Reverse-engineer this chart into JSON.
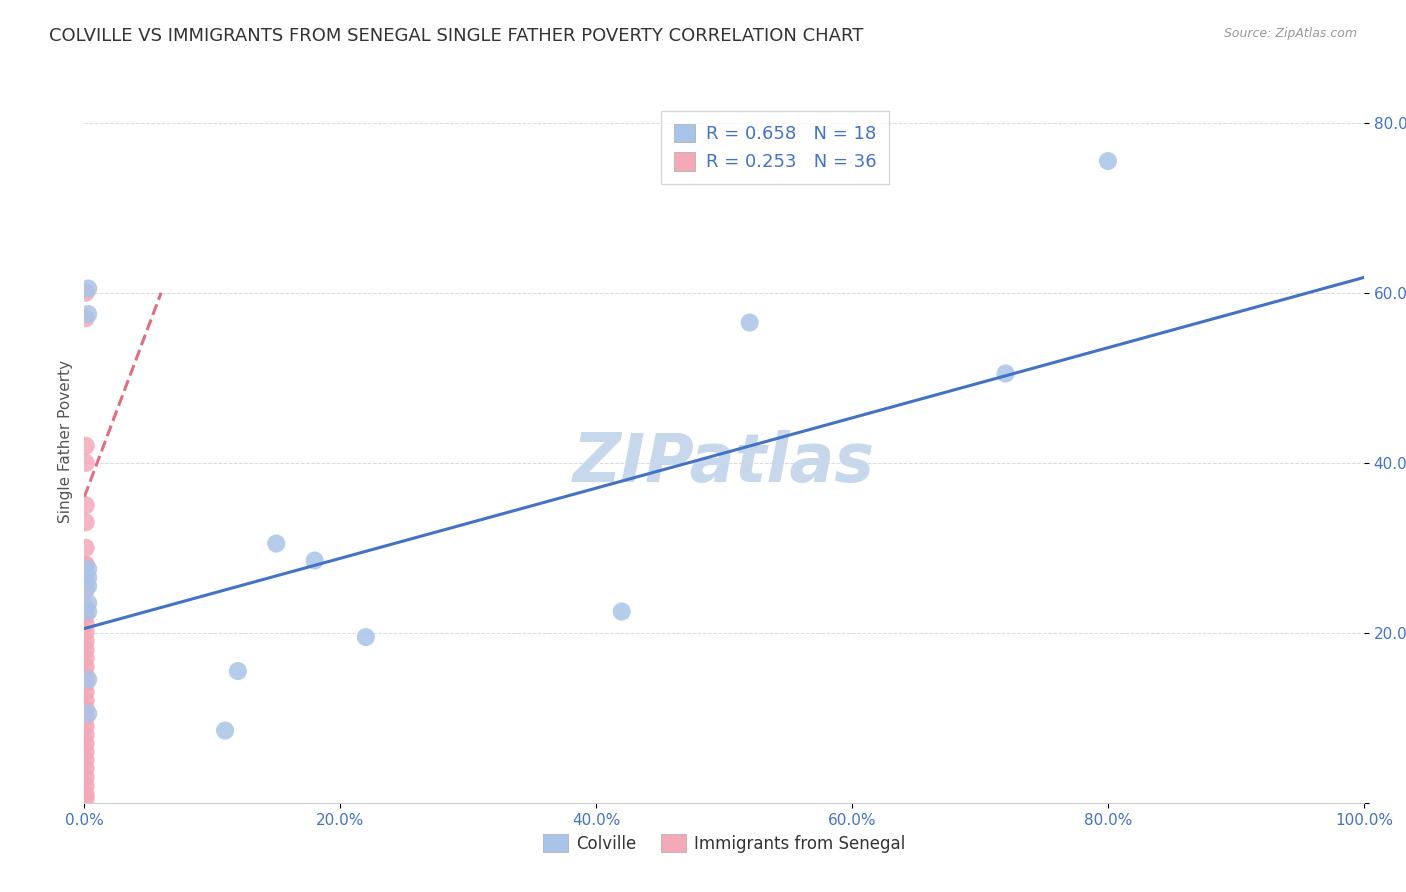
{
  "title": "COLVILLE VS IMMIGRANTS FROM SENEGAL SINGLE FATHER POVERTY CORRELATION CHART",
  "source": "Source: ZipAtlas.com",
  "xlabel_colville": "Colville",
  "xlabel_senegal": "Immigrants from Senegal",
  "ylabel": "Single Father Poverty",
  "colville_R": 0.658,
  "colville_N": 18,
  "senegal_R": 0.253,
  "senegal_N": 36,
  "colville_color": "#a8c4e8",
  "senegal_color": "#f4a8b8",
  "trendline_colville_color": "#4472c4",
  "trendline_senegal_color": "#e07080",
  "watermark_color": "#c8d8ec",
  "colville_points_x": [
    0.003,
    0.003,
    0.15,
    0.22,
    0.18,
    0.42,
    0.52,
    0.72,
    0.8,
    0.003,
    0.003,
    0.12,
    0.003,
    0.003,
    0.11,
    0.003,
    0.003,
    0.003
  ],
  "colville_points_y": [
    0.605,
    0.575,
    0.305,
    0.195,
    0.285,
    0.225,
    0.565,
    0.505,
    0.755,
    0.255,
    0.235,
    0.155,
    0.105,
    0.145,
    0.085,
    0.265,
    0.275,
    0.225
  ],
  "senegal_points_x": [
    0.001,
    0.001,
    0.001,
    0.001,
    0.001,
    0.001,
    0.001,
    0.001,
    0.001,
    0.001,
    0.001,
    0.001,
    0.001,
    0.001,
    0.001,
    0.001,
    0.001,
    0.001,
    0.001,
    0.001,
    0.001,
    0.001,
    0.001,
    0.001,
    0.001,
    0.001,
    0.001,
    0.001,
    0.001,
    0.001,
    0.001,
    0.001,
    0.001,
    0.001,
    0.001,
    0.001
  ],
  "senegal_points_y": [
    0.6,
    0.57,
    0.42,
    0.4,
    0.33,
    0.28,
    0.26,
    0.26,
    0.25,
    0.23,
    0.22,
    0.21,
    0.2,
    0.19,
    0.18,
    0.17,
    0.16,
    0.15,
    0.14,
    0.13,
    0.12,
    0.11,
    0.1,
    0.09,
    0.08,
    0.07,
    0.06,
    0.05,
    0.04,
    0.03,
    0.02,
    0.01,
    0.005,
    0.28,
    0.3,
    0.35
  ],
  "senegal_trendline_x": [
    0.0,
    0.06
  ],
  "senegal_trendline_y": [
    0.36,
    0.6
  ],
  "colville_trendline_x": [
    0.0,
    1.0
  ],
  "colville_trendline_y": [
    0.205,
    0.618
  ],
  "xlim": [
    0.0,
    1.0
  ],
  "ylim": [
    0.0,
    0.85
  ],
  "xticks": [
    0.0,
    0.2,
    0.4,
    0.6,
    0.8,
    1.0
  ],
  "xticklabels": [
    "0.0%",
    "20.0%",
    "40.0%",
    "60.0%",
    "80.0%",
    "100.0%"
  ],
  "yticks": [
    0.0,
    0.2,
    0.4,
    0.6,
    0.8
  ],
  "yticklabels": [
    "",
    "20.0%",
    "40.0%",
    "60.0%",
    "80.0%"
  ],
  "background_color": "#ffffff",
  "legend_fontsize": 13,
  "axis_fontsize": 11,
  "title_fontsize": 13
}
